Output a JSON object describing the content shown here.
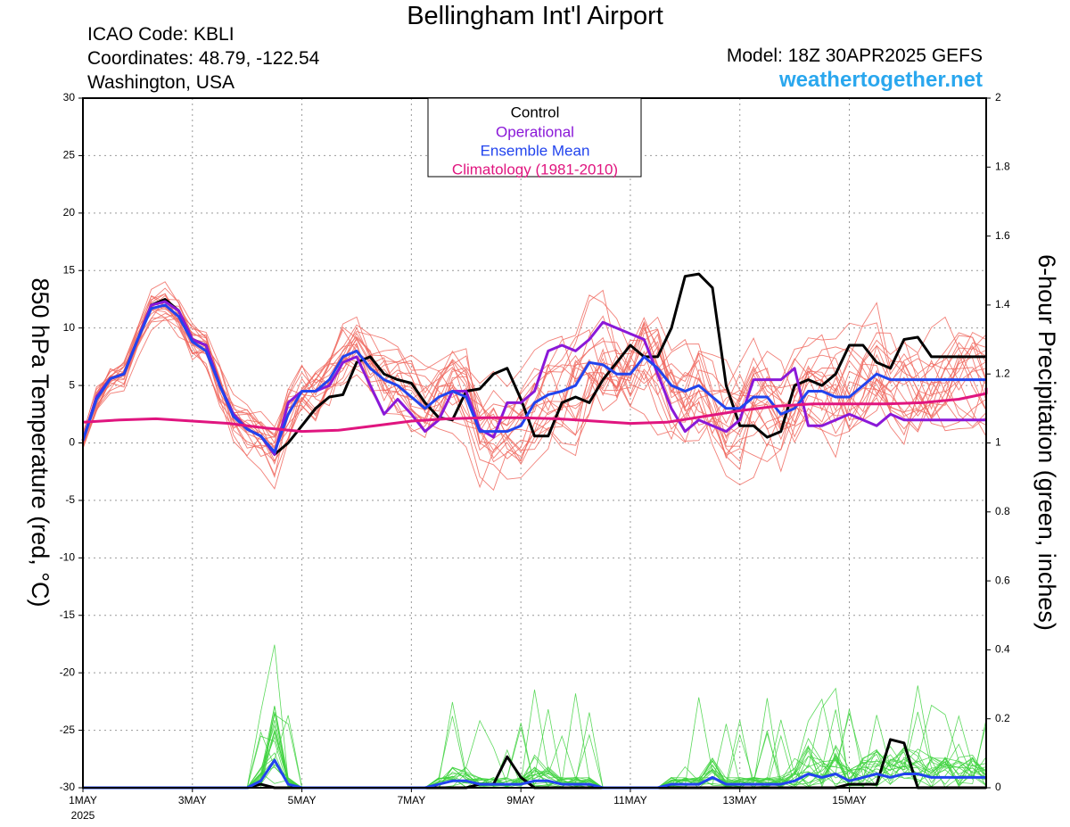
{
  "header": {
    "title": "Bellingham Int'l Airport",
    "icao": "ICAO Code: KBLI",
    "coordinates": "Coordinates: 48.79, -122.54",
    "region": "Washington, USA",
    "model": "Model: 18Z 30APR2025 GEFS",
    "website": "weathertogether.net"
  },
  "chart_data": {
    "type": "line",
    "title": "Bellingham Int'l Airport",
    "ylabel_left": "850 hPa Temperature (red, °C)",
    "ylabel_right": "6-hour Precipitation (green, inches)",
    "x_start_hours": 0,
    "x_step_hours": 6,
    "x_range_hours": [
      0,
      396
    ],
    "x_ticks": [
      {
        "hour": 0,
        "label": "1MAY",
        "sublabel": "2025"
      },
      {
        "hour": 48,
        "label": "3MAY"
      },
      {
        "hour": 96,
        "label": "5MAY"
      },
      {
        "hour": 144,
        "label": "7MAY"
      },
      {
        "hour": 192,
        "label": "9MAY"
      },
      {
        "hour": 240,
        "label": "11MAY"
      },
      {
        "hour": 288,
        "label": "13MAY"
      },
      {
        "hour": 336,
        "label": "15MAY"
      }
    ],
    "ylim_left": [
      -30,
      30
    ],
    "yticks_left": [
      -30,
      -25,
      -20,
      -15,
      -10,
      -5,
      0,
      5,
      10,
      15,
      20,
      25,
      30
    ],
    "ylim_right": [
      0,
      2
    ],
    "yticks_right": [
      "0",
      "0.2",
      "0.4",
      "0.6",
      "0.8",
      "1",
      "1.2",
      "1.4",
      "1.6",
      "1.8",
      "2"
    ],
    "grid": true,
    "legend_position": "top-center",
    "legend": [
      {
        "label": "Control",
        "color": "#000000"
      },
      {
        "label": "Operational",
        "color": "#8a18d8"
      },
      {
        "label": "Ensemble Mean",
        "color": "#2244ee"
      },
      {
        "label": "Climatology (1981-2010)",
        "color": "#e0157f"
      }
    ],
    "colors": {
      "control": "#000000",
      "operational": "#8a18d8",
      "mean": "#2244ee",
      "climatology": "#e0157f",
      "members_temp": "#f0695f",
      "members_precip": "#3ed23e"
    },
    "series": [
      {
        "name": "Control",
        "axis": "left",
        "values": [
          0.2,
          4,
          5.6,
          6,
          9,
          12,
          12.5,
          11.5,
          9,
          8.5,
          5,
          2.5,
          1.2,
          0.6,
          -1,
          0,
          1.5,
          3,
          4,
          4.2,
          7,
          7.5,
          6,
          5.5,
          5.2,
          3.5,
          2.2,
          2,
          4.5,
          4.7,
          6,
          6.5,
          3.8,
          0.6,
          0.6,
          3.5,
          4,
          3.5,
          5.5,
          7,
          8.5,
          7.5,
          7.5,
          10,
          14.5,
          14.7,
          13.5,
          5,
          1.5,
          1.5,
          0.5,
          1,
          5,
          5.5,
          5,
          6,
          8.5,
          8.5,
          7,
          6.5,
          9,
          9.2,
          7.5,
          7.5,
          7.5,
          7.5,
          7.5
        ]
      },
      {
        "name": "Operational",
        "axis": "left",
        "values": [
          0.2,
          4,
          5.6,
          6,
          9,
          12,
          12.3,
          11.5,
          9,
          8.5,
          5,
          2.5,
          1.2,
          0.6,
          -1,
          3.5,
          4.5,
          4.5,
          5,
          7,
          7.5,
          5,
          2.5,
          3.8,
          2.5,
          1,
          2,
          4.5,
          4.5,
          1.2,
          0.5,
          3.5,
          3.5,
          4.5,
          8,
          8.5,
          8,
          9,
          10.5,
          10,
          9.5,
          9,
          6,
          3,
          1,
          2,
          1.5,
          1,
          2,
          5.5,
          5.5,
          5.5,
          6.5,
          1.5,
          1.5,
          2,
          2.5,
          2,
          1.5,
          2.5,
          2,
          2,
          2,
          2,
          2,
          2,
          2
        ]
      },
      {
        "name": "Ensemble Mean",
        "axis": "left",
        "values": [
          0.2,
          3.8,
          5.6,
          6,
          9,
          11.7,
          12,
          11,
          8.8,
          8,
          5,
          2.3,
          1.2,
          0.6,
          -0.8,
          2.5,
          4.5,
          4.5,
          5.5,
          7.5,
          8,
          6.5,
          5.5,
          5,
          4,
          3,
          4,
          4.5,
          4,
          1,
          1,
          1,
          1.5,
          3.5,
          4.2,
          4.5,
          5,
          7,
          6.8,
          6,
          6,
          7.5,
          6.5,
          5,
          4.5,
          5,
          4,
          3,
          3,
          4,
          4,
          2.5,
          3,
          4.5,
          4.5,
          4,
          4,
          5,
          6,
          5.5,
          5.5,
          5.5,
          5.5,
          5.5,
          5.5,
          5.5,
          5.5
        ]
      },
      {
        "name": "Climatology (1981-2010)",
        "axis": "left",
        "values": [
          1.8,
          2,
          2.1,
          1.9,
          1.7,
          1.3,
          1,
          1.1,
          1.5,
          1.9,
          2.1,
          2.2,
          2.2,
          2.1,
          1.9,
          1.7,
          1.8,
          2.3,
          2.8,
          3.2,
          3.4,
          3.4,
          3.4,
          3.5,
          3.8,
          4.3,
          4.8
        ]
      },
      {
        "name": "Control",
        "axis": "right",
        "values": [
          0,
          0,
          0,
          0,
          0,
          0,
          0,
          0,
          0,
          0,
          0,
          0,
          0,
          0.01,
          0,
          0,
          0,
          0,
          0,
          0,
          0,
          0,
          0,
          0,
          0,
          0,
          0,
          0,
          0,
          0.01,
          0.01,
          0.09,
          0.03,
          0,
          0,
          0,
          0,
          0,
          0,
          0,
          0,
          0,
          0,
          0,
          0,
          0,
          0,
          0,
          0,
          0,
          0,
          0,
          0,
          0,
          0,
          0,
          0.01,
          0.01,
          0.01,
          0.14,
          0.13,
          0,
          0,
          0,
          0,
          0,
          0
        ]
      },
      {
        "name": "Ensemble Mean",
        "axis": "right",
        "values": [
          0,
          0,
          0,
          0,
          0,
          0,
          0,
          0,
          0,
          0,
          0,
          0,
          0,
          0.02,
          0.08,
          0.01,
          0,
          0,
          0,
          0,
          0,
          0,
          0,
          0,
          0,
          0,
          0.01,
          0.02,
          0.02,
          0.01,
          0.01,
          0.01,
          0.01,
          0.02,
          0.02,
          0.01,
          0.01,
          0.01,
          0,
          0,
          0,
          0,
          0,
          0.01,
          0.01,
          0.01,
          0.03,
          0.01,
          0.01,
          0.01,
          0.01,
          0.01,
          0.02,
          0.04,
          0.03,
          0.04,
          0.02,
          0.03,
          0.04,
          0.03,
          0.04,
          0.04,
          0.03,
          0.03,
          0.03,
          0.03,
          0.03
        ]
      }
    ]
  }
}
